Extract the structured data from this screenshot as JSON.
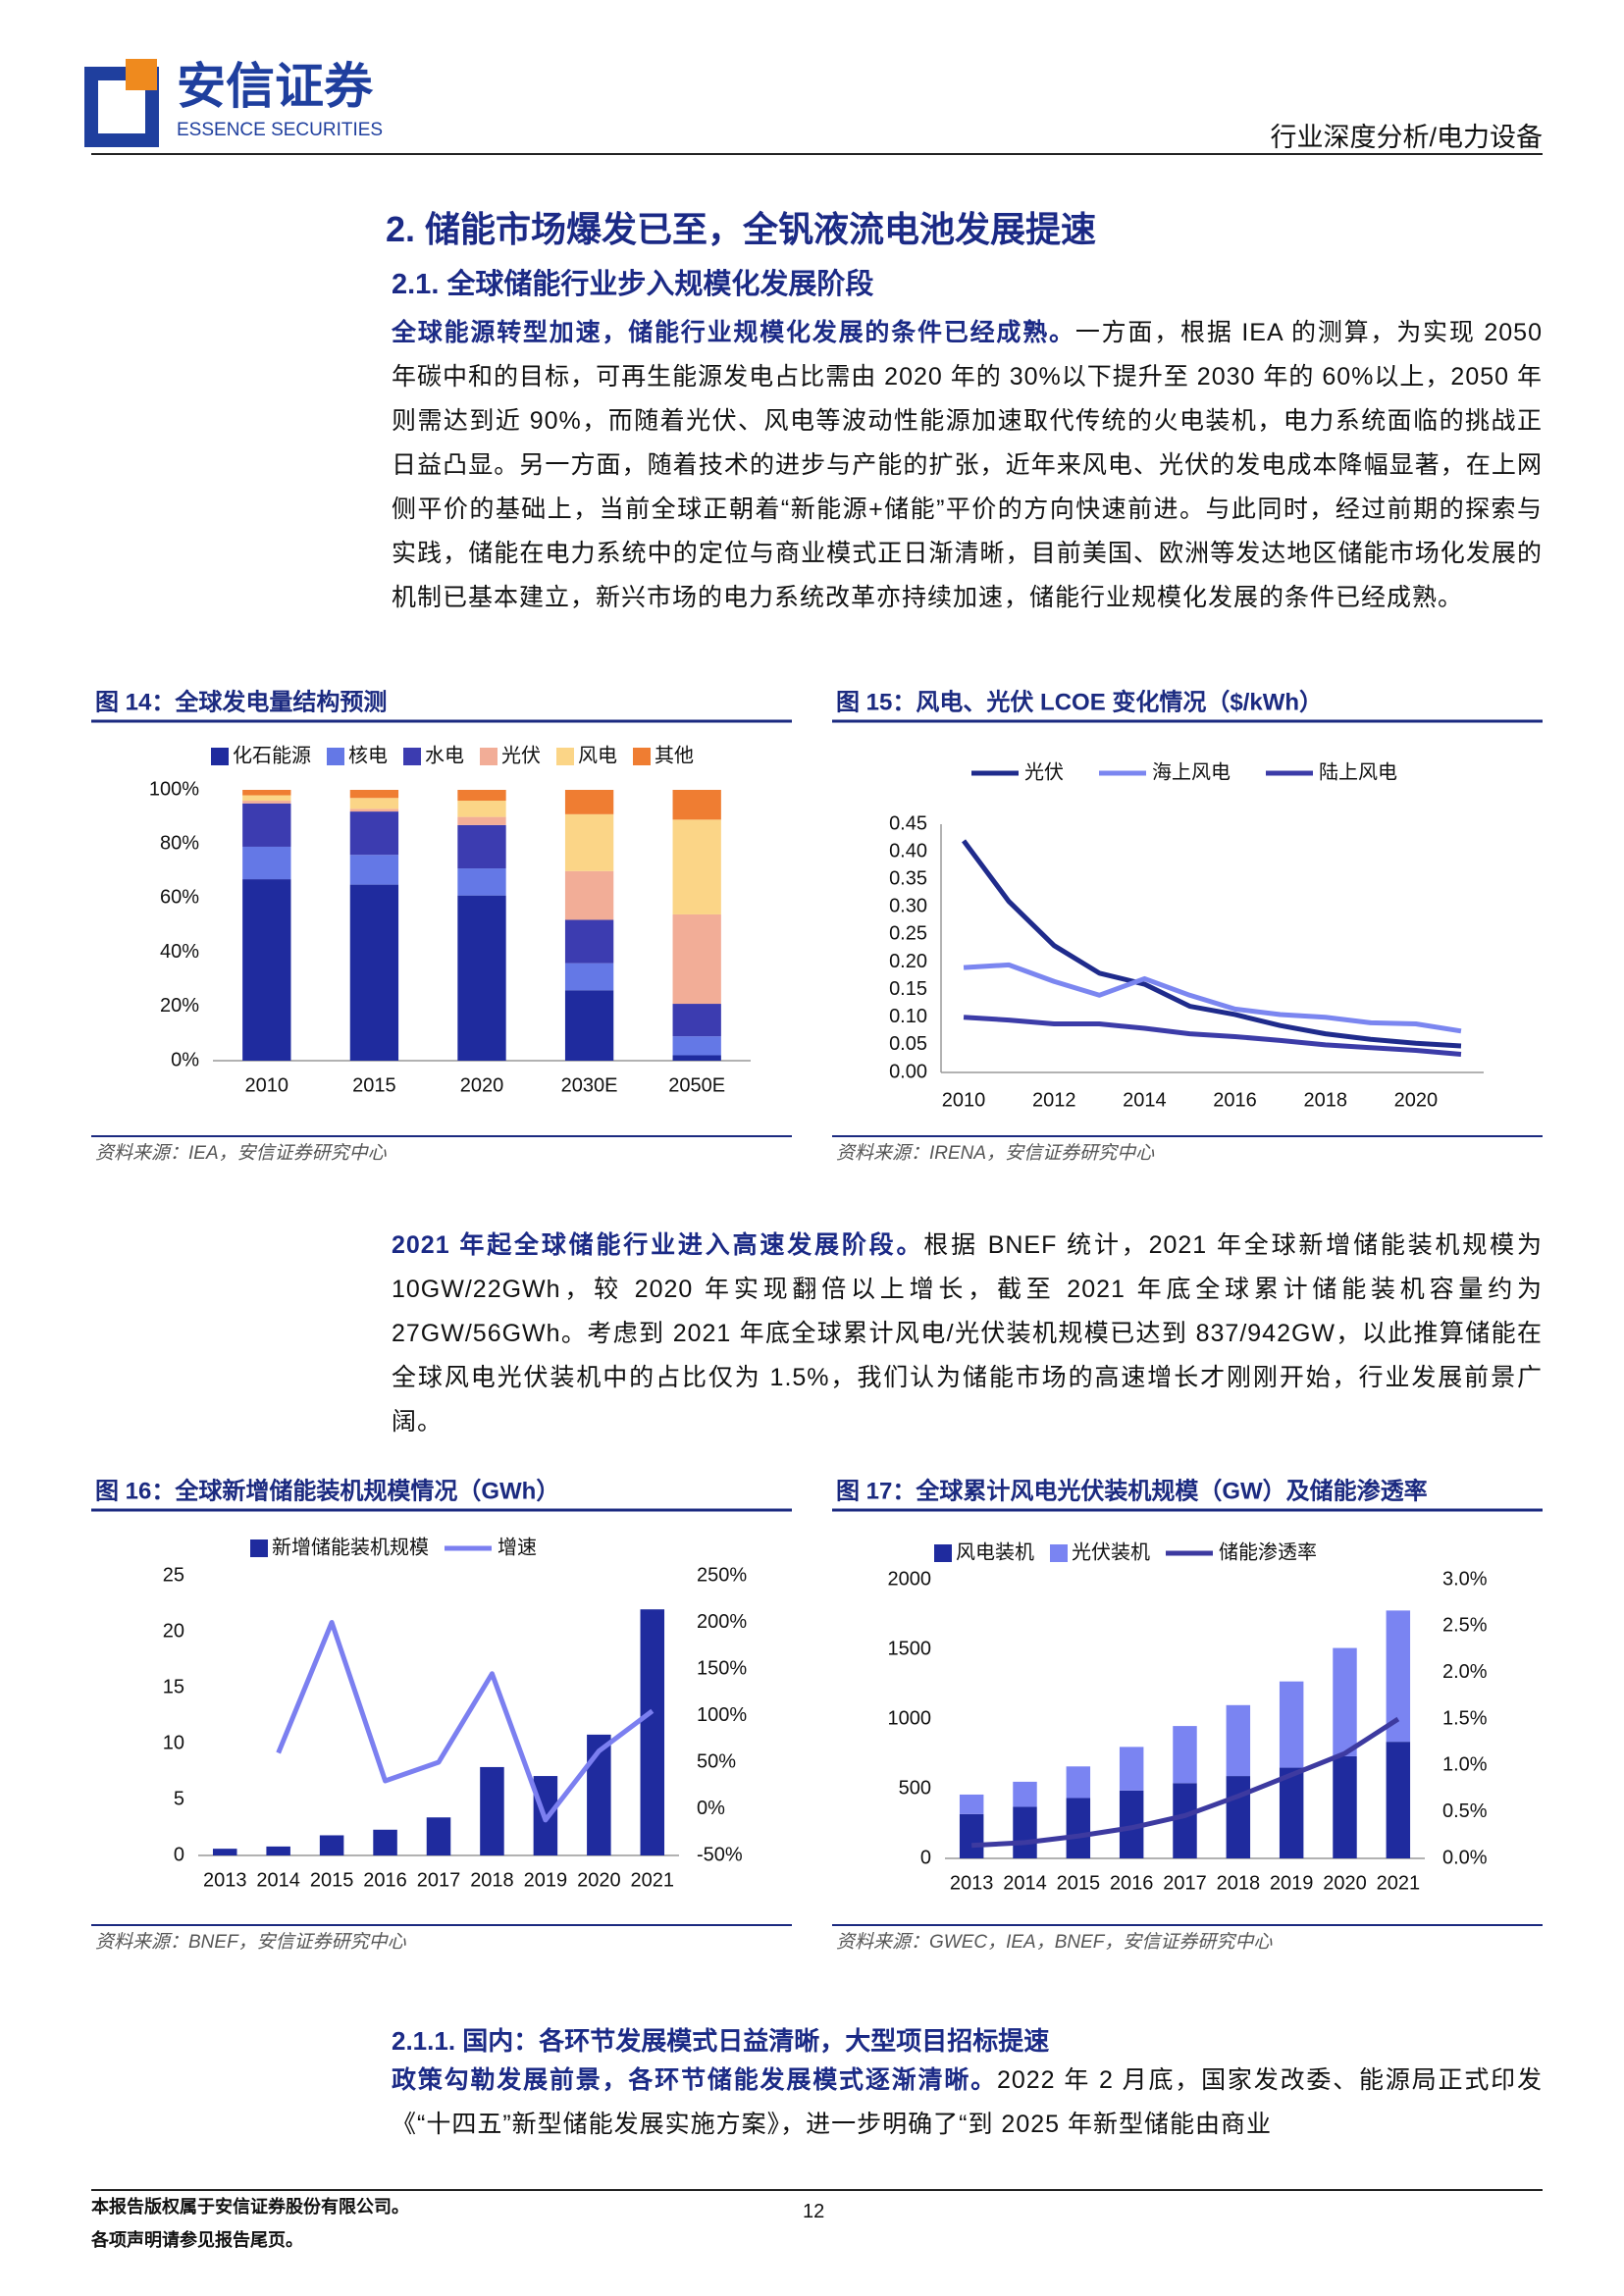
{
  "header": {
    "logo_cn": "安信证券",
    "logo_en": "ESSENCE SECURITIES",
    "category": "行业深度分析/电力设备"
  },
  "section_title": "2. 储能市场爆发已至，全钒液流电池发展提速",
  "subsection_title": "2.1. 全球储能行业步入规模化发展阶段",
  "subsubsection_title": "2.1.1. 国内：各环节发展模式日益清晰，大型项目招标提速",
  "paragraphs": [
    {
      "lead": "全球能源转型加速，储能行业规模化发展的条件已经成熟。",
      "text": "一方面，根据 IEA 的测算，为实现 2050 年碳中和的目标，可再生能源发电占比需由 2020 年的 30%以下提升至 2030 年的 60%以上，2050 年则需达到近 90%，而随着光伏、风电等波动性能源加速取代传统的火电装机，电力系统面临的挑战正日益凸显。另一方面，随着技术的进步与产能的扩张，近年来风电、光伏的发电成本降幅显著，在上网侧平价的基础上，当前全球正朝着“新能源+储能”平价的方向快速前进。与此同时，经过前期的探索与实践，储能在电力系统中的定位与商业模式正日渐清晰，目前美国、欧洲等发达地区储能市场化发展的机制已基本建立，新兴市场的电力系统改革亦持续加速，储能行业规模化发展的条件已经成熟。"
    },
    {
      "lead": "2021 年起全球储能行业进入高速发展阶段。",
      "text": "根据 BNEF 统计，2021 年全球新增储能装机规模为 10GW/22GWh，较 2020 年实现翻倍以上增长，截至 2021 年底全球累计储能装机容量约为 27GW/56GWh。考虑到 2021 年底全球累计风电/光伏装机规模已达到 837/942GW，以此推算储能在全球风电光伏装机中的占比仅为 1.5%，我们认为储能市场的高速增长才刚刚开始，行业发展前景广阔。"
    },
    {
      "lead": "政策勾勒发展前景，各环节储能发展模式逐渐清晰。",
      "text": "2022 年 2 月底，国家发改委、能源局正式印发《“十四五”新型储能发展实施方案》，进一步明确了“到 2025 年新型储能由商业"
    }
  ],
  "chart_data": [
    {
      "type": "bar",
      "title": "图 14：全球发电量结构预测",
      "source": "资料来源：IEA，安信证券研究中心",
      "stacked": true,
      "categories": [
        "2010",
        "2015",
        "2020",
        "2030E",
        "2050E"
      ],
      "series": [
        {
          "name": "化石能源",
          "color": "#1f2b9e",
          "values": [
            67,
            65,
            61,
            26,
            2
          ]
        },
        {
          "name": "核电",
          "color": "#6478e6",
          "values": [
            12,
            11,
            10,
            10,
            7
          ]
        },
        {
          "name": "水电",
          "color": "#3c3cb0",
          "values": [
            16,
            16,
            16,
            16,
            12
          ]
        },
        {
          "name": "光伏",
          "color": "#f2ad97",
          "values": [
            1,
            1,
            3,
            18,
            33
          ]
        },
        {
          "name": "风电",
          "color": "#fbd587",
          "values": [
            2,
            4,
            6,
            21,
            35
          ]
        },
        {
          "name": "其他",
          "color": "#ef7d32",
          "values": [
            2,
            3,
            4,
            9,
            11
          ]
        }
      ],
      "ylim": [
        0,
        100
      ],
      "yticks": [
        {
          "value": 0,
          "label": "0%"
        },
        {
          "value": 20,
          "label": "20%"
        },
        {
          "value": 40,
          "label": "40%"
        },
        {
          "value": 60,
          "label": "60%"
        },
        {
          "value": 80,
          "label": "80%"
        },
        {
          "value": 100,
          "label": "100%"
        }
      ]
    },
    {
      "type": "line",
      "title": "图 15：风电、光伏 LCOE 变化情况（$/kWh）",
      "source": "资料来源：IRENA，安信证券研究中心",
      "x": [
        2010,
        2011,
        2012,
        2013,
        2014,
        2015,
        2016,
        2017,
        2018,
        2019,
        2020,
        2021
      ],
      "xlim": [
        2009.5,
        2021.5
      ],
      "xticks": [
        2010,
        2012,
        2014,
        2016,
        2018,
        2020
      ],
      "series": [
        {
          "name": "光伏",
          "color": "#1f2b8c",
          "values": [
            0.42,
            0.31,
            0.23,
            0.18,
            0.16,
            0.12,
            0.105,
            0.085,
            0.07,
            0.06,
            0.053,
            0.048
          ]
        },
        {
          "name": "海上风电",
          "color": "#7b86f0",
          "values": [
            0.19,
            0.195,
            0.165,
            0.14,
            0.17,
            0.14,
            0.115,
            0.105,
            0.1,
            0.09,
            0.088,
            0.075
          ]
        },
        {
          "name": "陆上风电",
          "color": "#3c3ca8",
          "values": [
            0.1,
            0.095,
            0.088,
            0.088,
            0.08,
            0.07,
            0.065,
            0.058,
            0.05,
            0.045,
            0.04,
            0.033
          ]
        }
      ],
      "ylim": [
        0,
        0.45
      ],
      "yticks": [
        {
          "value": 0,
          "label": "0.00"
        },
        0.05,
        {
          "value": 0.1,
          "label": "0.10"
        },
        0.15,
        {
          "value": 0.2,
          "label": "0.20"
        },
        0.25,
        {
          "value": 0.3,
          "label": "0.30"
        },
        0.35,
        {
          "value": 0.4,
          "label": "0.40"
        },
        0.45
      ]
    },
    {
      "type": "bar",
      "title": "图 16：全球新增储能装机规模情况（GWh）",
      "source": "资料来源：BNEF，安信证券研究中心",
      "categories": [
        "2013",
        "2014",
        "2015",
        "2016",
        "2017",
        "2018",
        "2019",
        "2020",
        "2021"
      ],
      "series": [
        {
          "name": "新增储能装机规模",
          "color": "#1f2b9e",
          "values": [
            0.6,
            0.8,
            1.8,
            2.3,
            3.4,
            7.9,
            7.1,
            10.8,
            22.0
          ]
        },
        {
          "name": "增速",
          "type": "line",
          "axis": "y2",
          "color": "#7b7ff0",
          "values": [
            null,
            60,
            200,
            30,
            50,
            145,
            -12,
            62,
            105
          ]
        }
      ],
      "ylim": [
        0,
        25
      ],
      "yticks": [
        0,
        5,
        10,
        15,
        20,
        25
      ],
      "y2lim": [
        -50,
        250
      ],
      "y2ticks": [
        {
          "value": -50,
          "label": "-50%"
        },
        {
          "value": 0,
          "label": "0%"
        },
        {
          "value": 50,
          "label": "50%"
        },
        {
          "value": 100,
          "label": "100%"
        },
        {
          "value": 150,
          "label": "150%"
        },
        {
          "value": 200,
          "label": "200%"
        },
        {
          "value": 250,
          "label": "250%"
        }
      ]
    },
    {
      "type": "bar",
      "title": "图 17：全球累计风电光伏装机规模（GW）及储能渗透率",
      "source": "资料来源：GWEC，IEA，BNEF，安信证券研究中心",
      "stacked": true,
      "categories": [
        "2013",
        "2014",
        "2015",
        "2016",
        "2017",
        "2018",
        "2019",
        "2020",
        "2021"
      ],
      "series": [
        {
          "name": "风电装机",
          "color": "#1f2b9e",
          "values": [
            318,
            370,
            433,
            487,
            540,
            591,
            651,
            733,
            837
          ]
        },
        {
          "name": "光伏装机",
          "color": "#7a84f2",
          "values": [
            140,
            180,
            227,
            313,
            410,
            509,
            619,
            777,
            942
          ]
        },
        {
          "name": "储能渗透率",
          "type": "line",
          "axis": "y2",
          "color": "#3d3aa0",
          "values": [
            0.14,
            0.17,
            0.24,
            0.33,
            0.46,
            0.67,
            0.9,
            1.13,
            1.5
          ]
        }
      ],
      "ylim": [
        0,
        2000
      ],
      "yticks": [
        0,
        500,
        1000,
        1500,
        2000
      ],
      "y2lim": [
        0,
        3
      ],
      "y2ticks": [
        {
          "value": 0,
          "label": "0.0%"
        },
        {
          "value": 0.5,
          "label": "0.5%"
        },
        {
          "value": 1,
          "label": "1.0%"
        },
        {
          "value": 1.5,
          "label": "1.5%"
        },
        {
          "value": 2,
          "label": "2.0%"
        },
        {
          "value": 2.5,
          "label": "2.5%"
        },
        {
          "value": 3,
          "label": "3.0%"
        }
      ]
    }
  ],
  "footer": {
    "lines": [
      "本报告版权属于安信证券股份有限公司。",
      "各项声明请参见报告尾页。"
    ],
    "page": 12
  }
}
